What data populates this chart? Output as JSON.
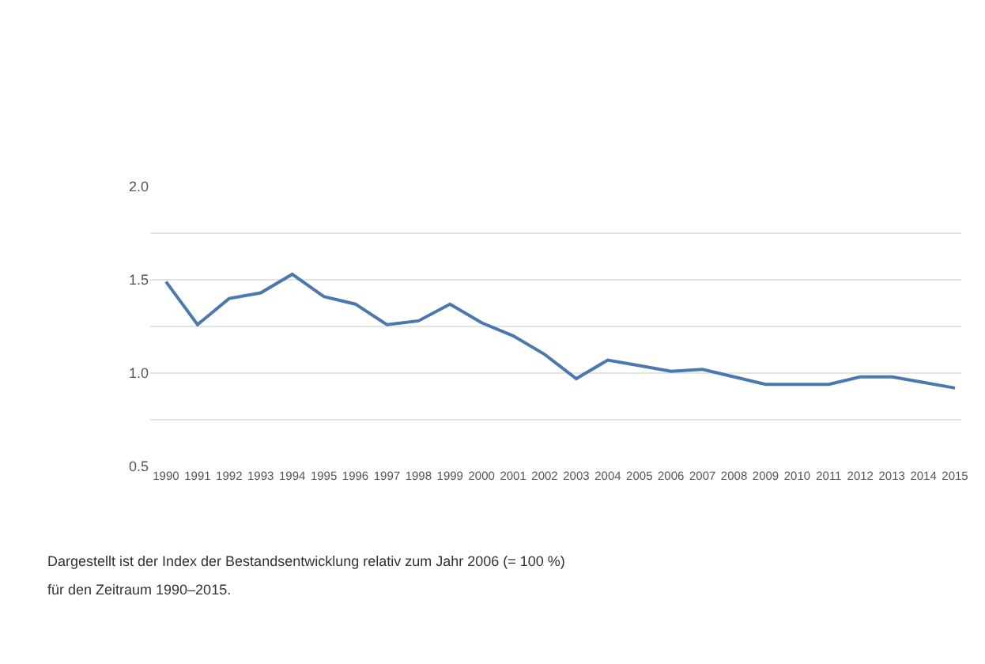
{
  "chart_data": {
    "type": "line",
    "x": [
      1990,
      1991,
      1992,
      1993,
      1994,
      1995,
      1996,
      1997,
      1998,
      1999,
      2000,
      2001,
      2002,
      2003,
      2004,
      2005,
      2006,
      2007,
      2008,
      2009,
      2010,
      2011,
      2012,
      2013,
      2014,
      2015
    ],
    "series": [
      {
        "color": "#4a78b0",
        "values": [
          1.49,
          1.26,
          1.4,
          1.43,
          1.53,
          1.41,
          1.37,
          1.26,
          1.28,
          1.37,
          1.27,
          1.2,
          1.1,
          0.97,
          1.07,
          1.04,
          1.01,
          1.02,
          0.98,
          0.94,
          0.94,
          0.94,
          0.98,
          0.98,
          0.95,
          0.92
        ]
      }
    ],
    "xlim": [
      1989.5,
      2015.2
    ],
    "xticks": [
      1990,
      1991,
      1992,
      1993,
      1994,
      1995,
      1996,
      1997,
      1998,
      1999,
      2000,
      2001,
      2002,
      2003,
      2004,
      2005,
      2006,
      2007,
      2008,
      2009,
      2010,
      2011,
      2012,
      2013,
      2014,
      2015
    ],
    "ylim": [
      0.5,
      2.0
    ],
    "yticks": [
      {
        "value": 0.5,
        "label": "0.5"
      },
      {
        "value": 0.75,
        "label": null
      },
      {
        "value": 1.0,
        "label": "1.0"
      },
      {
        "value": 1.25,
        "label": null
      },
      {
        "value": 1.5,
        "label": "1.5"
      },
      {
        "value": 1.75,
        "label": null
      },
      {
        "value": 2.0,
        "label": "2.0"
      }
    ],
    "grid": "y",
    "marker": "none",
    "line_style": "solid",
    "annotations": [
      "Dargestellt ist der Index der Bestandsentwicklung relativ zum Jahr 2006 (= 100 %)",
      "für den Zeitraum 1990–2015."
    ]
  }
}
